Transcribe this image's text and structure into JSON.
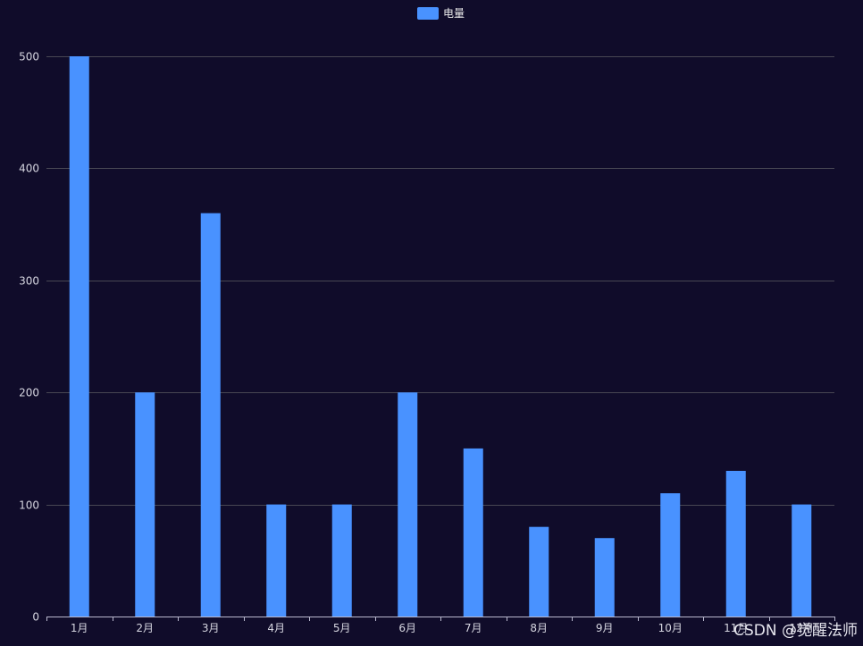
{
  "chart_data": {
    "type": "bar",
    "categories": [
      "1月",
      "2月",
      "3月",
      "4月",
      "5月",
      "6月",
      "7月",
      "8月",
      "9月",
      "10月",
      "11月",
      "12月"
    ],
    "series": [
      {
        "name": "电量",
        "values": [
          500,
          200,
          360,
          100,
          100,
          200,
          150,
          80,
          70,
          110,
          130,
          100
        ]
      }
    ],
    "ylim": [
      0,
      500
    ],
    "yticks": [
      0,
      100,
      200,
      300,
      400,
      500
    ],
    "grid": true,
    "legend_position": "top-center"
  },
  "colors": {
    "background": "#100c2a",
    "bar": "#4992ff",
    "grid": "#484753",
    "axis_line": "#b9b8ce",
    "text": "#d6d6e0"
  },
  "watermark": "CSDN @觉醒法师"
}
